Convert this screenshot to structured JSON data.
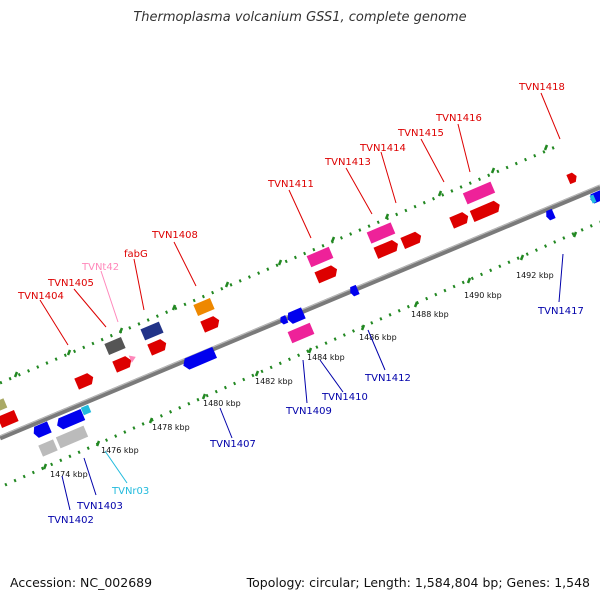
{
  "title": "Thermoplasma volcanium GSS1, complete genome",
  "footer": {
    "accession": "Accession: NC_002689",
    "summary": "Topology: circular; Length: 1,584,804 bp; Genes: 1,548"
  },
  "ticks": [
    "1474 kbp",
    "1476 kbp",
    "1478 kbp",
    "1480 kbp",
    "1482 kbp",
    "1484 kbp",
    "1486 kbp",
    "1488 kbp",
    "1490 kbp",
    "1492 kbp"
  ],
  "genes_upper": [
    {
      "label": "TVN1404",
      "color": "#dd0000"
    },
    {
      "label": "TVN1405",
      "color": "#dd0000"
    },
    {
      "label": "TVNt42",
      "color": "#ff88bb"
    },
    {
      "label": "fabG",
      "color": "#dd0000"
    },
    {
      "label": "TVN1408",
      "color": "#dd0000"
    },
    {
      "label": "TVN1411",
      "color": "#dd0000"
    },
    {
      "label": "TVN1413",
      "color": "#dd0000"
    },
    {
      "label": "TVN1414",
      "color": "#dd0000"
    },
    {
      "label": "TVN1415",
      "color": "#dd0000"
    },
    {
      "label": "TVN1416",
      "color": "#dd0000"
    },
    {
      "label": "TVN1418",
      "color": "#dd0000"
    }
  ],
  "genes_lower": [
    {
      "label": "TVN1402",
      "color": "#0000aa"
    },
    {
      "label": "TVN1403",
      "color": "#0000aa"
    },
    {
      "label": "TVNr03",
      "color": "#22bbdd"
    },
    {
      "label": "TVN1407",
      "color": "#0000aa"
    },
    {
      "label": "TVN1409",
      "color": "#0000aa"
    },
    {
      "label": "TVN1410",
      "color": "#0000aa"
    },
    {
      "label": "TVN1412",
      "color": "#0000aa"
    },
    {
      "label": "TVN1417",
      "color": "#0000aa"
    }
  ]
}
